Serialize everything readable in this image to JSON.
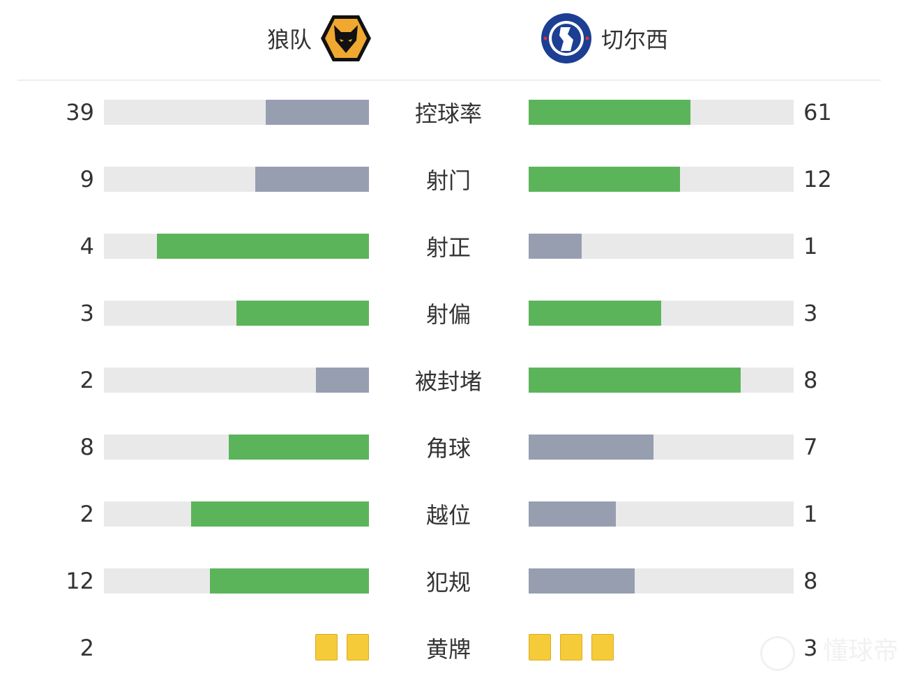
{
  "home": {
    "name": "狼队",
    "logo": "wolves-crest"
  },
  "away": {
    "name": "切尔西",
    "logo": "chelsea-crest",
    "logo_text": [
      "CHELSEA",
      "FOOTBALL CLUB"
    ]
  },
  "colors": {
    "leading": "#5cb45a",
    "trailing": "#979eb0",
    "track": "#e9e9e9",
    "yellow_card": "#f5cb3a"
  },
  "stats": [
    {
      "label": "控球率",
      "home": "39",
      "away": "61",
      "home_pct": 39,
      "away_pct": 61
    },
    {
      "label": "射门",
      "home": "9",
      "away": "12",
      "home_pct": 43,
      "away_pct": 57
    },
    {
      "label": "射正",
      "home": "4",
      "away": "1",
      "home_pct": 80,
      "away_pct": 20
    },
    {
      "label": "射偏",
      "home": "3",
      "away": "3",
      "home_pct": 50,
      "away_pct": 50
    },
    {
      "label": "被封堵",
      "home": "2",
      "away": "8",
      "home_pct": 20,
      "away_pct": 80
    },
    {
      "label": "角球",
      "home": "8",
      "away": "7",
      "home_pct": 53,
      "away_pct": 47
    },
    {
      "label": "越位",
      "home": "2",
      "away": "1",
      "home_pct": 67,
      "away_pct": 33
    },
    {
      "label": "犯规",
      "home": "12",
      "away": "8",
      "home_pct": 60,
      "away_pct": 40
    }
  ],
  "yellow": {
    "label": "黄牌",
    "home": "2",
    "away": "3"
  },
  "watermark": "懂球帝"
}
